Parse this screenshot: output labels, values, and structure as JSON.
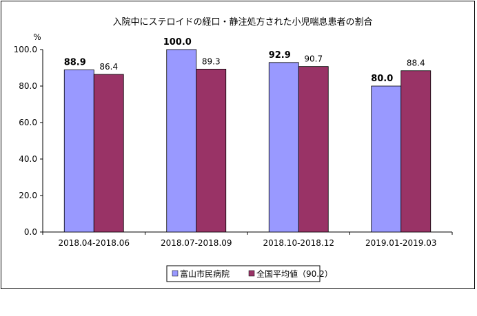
{
  "chart_data": {
    "type": "bar",
    "title": "入院中にステロイドの経口・静注処方された小児喘息患者の割合",
    "ylabel": "%",
    "xlabel": "",
    "ylim": [
      0,
      100
    ],
    "yticks": [
      "0.0",
      "20.0",
      "40.0",
      "60.0",
      "80.0",
      "100.0"
    ],
    "categories": [
      "2018.04-2018.06",
      "2018.07-2018.09",
      "2018.10-2018.12",
      "2019.01-2019.03"
    ],
    "series": [
      {
        "name": "富山市民病院",
        "values": [
          88.9,
          100.0,
          92.9,
          80.0
        ],
        "labels": [
          "88.9",
          "100.0",
          "92.9",
          "80.0"
        ],
        "color": "#9999FF"
      },
      {
        "name": "全国平均値（90.2）",
        "values": [
          86.4,
          89.3,
          90.7,
          88.4
        ],
        "labels": [
          "86.4",
          "89.3",
          "90.7",
          "88.4"
        ],
        "color": "#993366"
      }
    ],
    "grid": false,
    "legend": "bottom"
  }
}
